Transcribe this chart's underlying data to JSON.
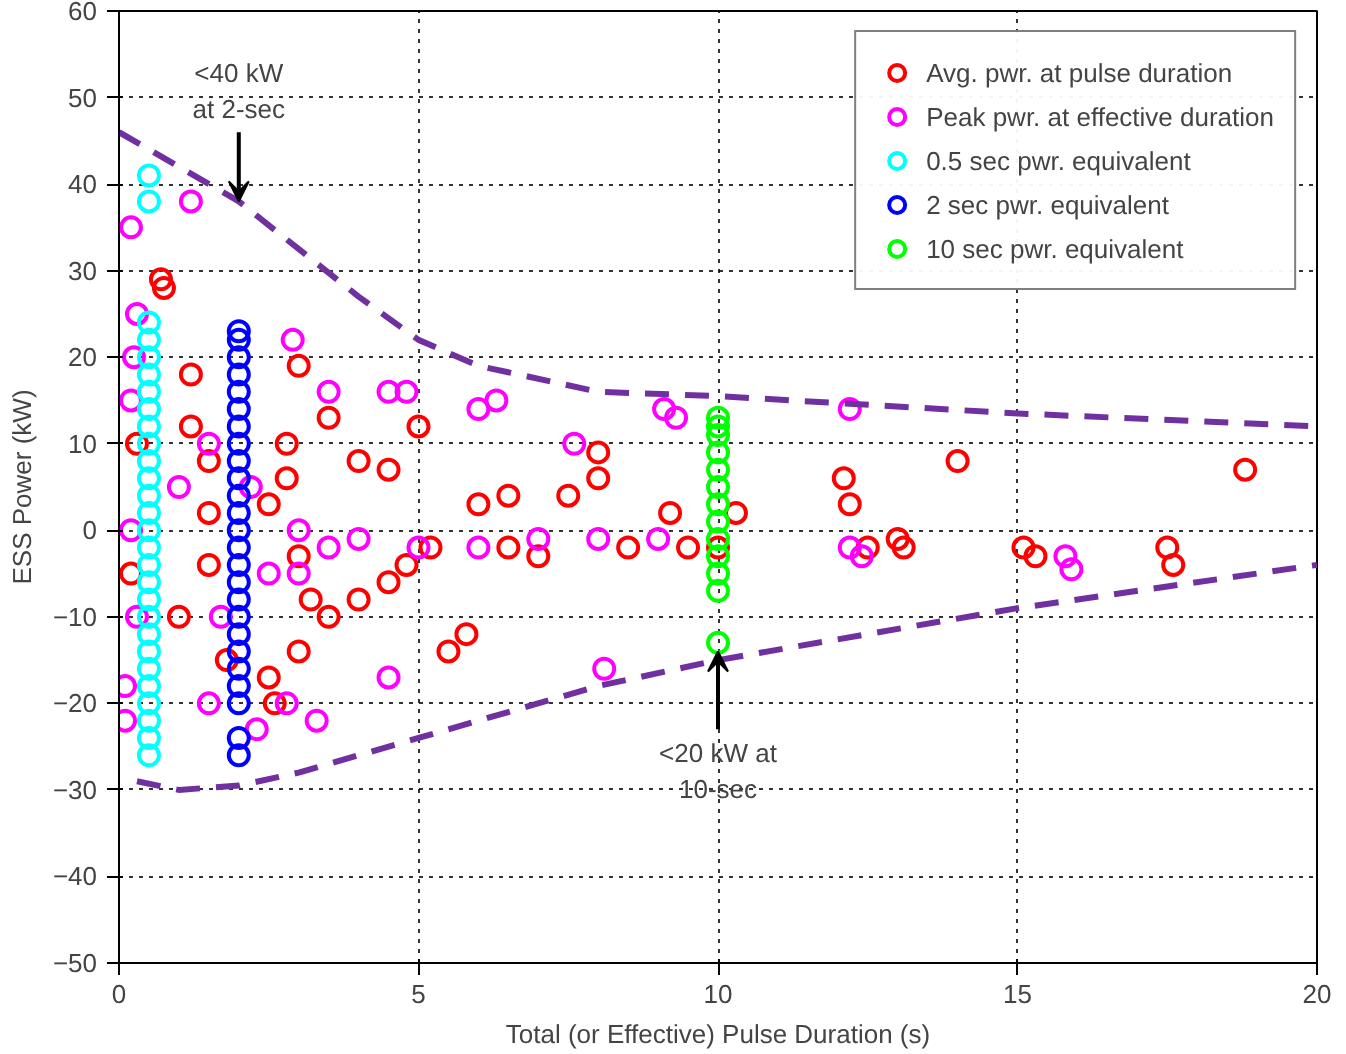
{
  "chart_data": {
    "type": "scatter",
    "xlabel": "Total (or Effective) Pulse Duration (s)",
    "ylabel": "ESS Power (kW)",
    "xlim": [
      0,
      20
    ],
    "ylim": [
      -50,
      60
    ],
    "xticks": [
      0,
      5,
      10,
      15,
      20
    ],
    "yticks": [
      -50,
      -40,
      -30,
      -20,
      -10,
      0,
      10,
      20,
      30,
      40,
      50,
      60
    ],
    "grid": true,
    "legend": "top right",
    "marker": "circle",
    "annotations": [
      {
        "text": "<40 kW\nat 2-sec",
        "x": 2,
        "y": 38
      },
      {
        "text": "<20 kW at\n10-sec",
        "x": 10,
        "y": -14
      }
    ],
    "series": [
      {
        "name": "Avg. pwr. at pulse duration",
        "color": "#ff0000",
        "x": [
          0.7,
          0.75,
          1.2,
          1.5,
          2.8,
          3.5,
          4,
          4.5,
          5,
          6,
          6.5,
          7,
          8,
          8,
          7.5,
          9.2,
          10.3,
          10,
          12.1,
          12.2,
          12.5,
          13.1,
          13,
          14,
          15.1,
          15.3,
          17.5,
          17.6,
          18.8,
          5.5,
          5.8,
          4,
          4.5,
          3.5,
          3,
          2.6,
          2.5,
          3.2,
          4.8,
          5.2,
          6.5,
          8.5,
          9.5,
          1.5,
          1,
          1.5,
          2.5,
          3,
          2.8,
          0.3,
          0.2,
          1.8,
          1.2,
          3
        ],
        "values": [
          29,
          28,
          12,
          8,
          6,
          13,
          8,
          7,
          12,
          3,
          4,
          -3,
          9,
          6,
          4,
          2,
          2,
          -2,
          6,
          3,
          -2,
          -2,
          -1,
          8,
          -2,
          -3,
          -2,
          -4,
          7,
          -14,
          -12,
          -8,
          -6,
          -10,
          -14,
          -20,
          -17,
          -8,
          -4,
          -2,
          -2,
          -2,
          -2,
          -4,
          -10,
          2,
          3,
          -3,
          10,
          10,
          -5,
          -15,
          18,
          19
        ]
      },
      {
        "name": "Peak pwr. at effective duration",
        "color": "#ff00ff",
        "x": [
          0.2,
          0.25,
          0.1,
          0.1,
          1.2,
          2.9,
          4.5,
          4.8,
          6.3,
          6,
          3.5,
          7.6,
          9.1,
          9.3,
          12.2,
          12.2,
          12.4,
          15.8,
          15.9,
          8.1,
          4.5,
          3.3,
          2.3,
          1.5,
          2.8,
          5,
          6,
          7,
          8,
          9,
          3,
          4,
          1,
          1.5,
          0.2,
          0.3,
          0.2,
          0.3,
          1.7,
          2.5,
          2.2,
          3,
          3.5
        ],
        "values": [
          35,
          20,
          -18,
          -22,
          38,
          22,
          16,
          16,
          15,
          14,
          16,
          10,
          14,
          13,
          14,
          -2,
          -3,
          -3,
          -4.5,
          -16,
          -17,
          -22,
          -23,
          -20,
          -20,
          -2,
          -2,
          -1,
          -1,
          -1,
          0,
          -1,
          5,
          10,
          0,
          -10,
          15,
          25,
          -10,
          -5,
          5,
          -5,
          -2
        ]
      },
      {
        "name": "0.5 sec pwr. equivalent",
        "color": "#00ffff",
        "x": [
          0.5,
          0.5,
          0.5,
          0.5,
          0.5,
          0.5,
          0.5,
          0.5,
          0.5,
          0.5,
          0.5,
          0.5,
          0.5,
          0.5,
          0.5,
          0.5,
          0.5,
          0.5,
          0.5,
          0.5,
          0.5,
          0.5,
          0.5,
          0.5,
          0.5,
          0.5,
          0.5,
          0.5
        ],
        "values": [
          -26,
          -24,
          -22,
          -20,
          -18,
          -16,
          -14,
          -12,
          -10,
          -8,
          -6,
          -4,
          -2,
          0,
          2,
          4,
          6,
          8,
          10,
          12,
          14,
          16,
          18,
          20,
          22,
          24,
          38,
          41
        ]
      },
      {
        "name": "2 sec pwr. equivalent",
        "color": "#0000ff",
        "x": [
          2,
          2,
          2,
          2,
          2,
          2,
          2,
          2,
          2,
          2,
          2,
          2,
          2,
          2,
          2,
          2,
          2,
          2,
          2,
          2,
          2,
          2,
          2,
          2,
          2
        ],
        "values": [
          -26,
          -24,
          -20,
          -18,
          -16,
          -14,
          -12,
          -10,
          -8,
          -6,
          -4,
          -2,
          0,
          2,
          4,
          6,
          8,
          10,
          12,
          14,
          16,
          18,
          20,
          22,
          23
        ]
      },
      {
        "name": "10 sec pwr. equivalent",
        "color": "#00ff00",
        "x": [
          10,
          10,
          10,
          10,
          10,
          10,
          10,
          10,
          10,
          10,
          10,
          10,
          10
        ],
        "values": [
          -13,
          -7,
          -5,
          -3,
          -1,
          1,
          3,
          5,
          7,
          9,
          11,
          12,
          13
        ]
      },
      {
        "type": "line",
        "color": "#7030a0",
        "line_style": "dashed",
        "marker": "none",
        "x": [
          0,
          2,
          4,
          5,
          6,
          8,
          10,
          15,
          20
        ],
        "values": [
          46,
          38,
          27,
          22,
          19,
          16,
          15.5,
          13.5,
          12
        ]
      },
      {
        "type": "line",
        "color": "#7030a0",
        "line_style": "dashed",
        "marker": "none",
        "x": [
          0.3,
          1,
          2,
          3,
          5,
          8,
          10,
          15,
          20
        ],
        "values": [
          -29,
          -30,
          -29.5,
          -28,
          -24,
          -18,
          -15,
          -9,
          -4
        ]
      }
    ]
  }
}
